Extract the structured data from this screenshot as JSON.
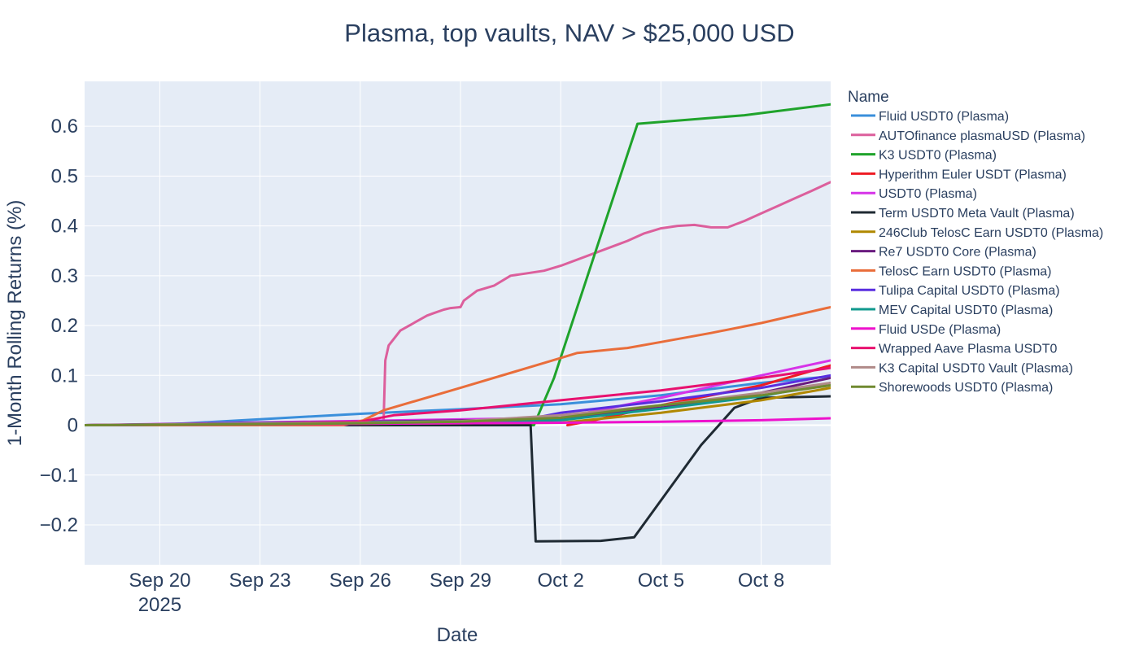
{
  "chart_data": {
    "type": "line",
    "title": "Plasma, top vaults, NAV > $25,000 USD",
    "xlabel": "Date",
    "ylabel": "1-Month Rolling Returns (%)",
    "legend_title": "Name",
    "legend_position": "right",
    "grid": true,
    "x_unit": "days since Sep 20 2025",
    "xlim": [
      -2.25,
      20.08
    ],
    "ylim": [
      -0.28,
      0.69
    ],
    "x_ticks": [
      {
        "x": 0,
        "label": "Sep 20",
        "sublabel": "2025"
      },
      {
        "x": 3,
        "label": "Sep 23"
      },
      {
        "x": 6,
        "label": "Sep 26"
      },
      {
        "x": 9,
        "label": "Sep 29"
      },
      {
        "x": 12,
        "label": "Oct 2"
      },
      {
        "x": 15,
        "label": "Oct 5"
      },
      {
        "x": 18,
        "label": "Oct 8"
      }
    ],
    "y_ticks": [
      {
        "y": -0.2,
        "label": "−0.2"
      },
      {
        "y": -0.1,
        "label": "−0.1"
      },
      {
        "y": 0,
        "label": "0"
      },
      {
        "y": 0.1,
        "label": "0.1"
      },
      {
        "y": 0.2,
        "label": "0.2"
      },
      {
        "y": 0.3,
        "label": "0.3"
      },
      {
        "y": 0.4,
        "label": "0.4"
      },
      {
        "y": 0.5,
        "label": "0.5"
      },
      {
        "y": 0.6,
        "label": "0.6"
      }
    ],
    "series": [
      {
        "name": "Fluid USDT0 (Plasma)",
        "color": "#3a8fdb",
        "x": [
          -2.25,
          -0.2,
          3,
          6,
          9,
          12,
          15,
          18,
          20.08
        ],
        "y": [
          0,
          0,
          0.012,
          0.023,
          0.032,
          0.042,
          0.06,
          0.085,
          0.098
        ]
      },
      {
        "name": "AUTOfinance plasmaUSD (Plasma)",
        "color": "#dc5f9c",
        "x": [
          -2.25,
          -0.2,
          3,
          6.7,
          6.75,
          6.85,
          7.2,
          7.6,
          8.0,
          8.2,
          8.5,
          8.7,
          9.0,
          9.1,
          9.5,
          10.0,
          10.5,
          11.0,
          11.5,
          12.0,
          13.0,
          14.0,
          14.5,
          15.0,
          15.5,
          16.0,
          16.5,
          17.0,
          17.5,
          18.0,
          18.5,
          19.0,
          19.5,
          20.08
        ],
        "y": [
          0,
          0,
          0.005,
          0.008,
          0.13,
          0.16,
          0.19,
          0.205,
          0.22,
          0.225,
          0.232,
          0.235,
          0.237,
          0.25,
          0.27,
          0.28,
          0.3,
          0.305,
          0.31,
          0.32,
          0.345,
          0.37,
          0.385,
          0.395,
          0.4,
          0.402,
          0.397,
          0.397,
          0.41,
          0.425,
          0.44,
          0.455,
          0.47,
          0.488
        ]
      },
      {
        "name": "K3 USDT0 (Plasma)",
        "color": "#1fa32b",
        "x": [
          -2.25,
          11.2,
          11.8,
          14.3,
          17.5,
          20.08
        ],
        "y": [
          0,
          0,
          0.095,
          0.605,
          0.622,
          0.644
        ]
      },
      {
        "name": "Hyperithm Euler USDT (Plasma)",
        "color": "#ee1c24",
        "x": [
          12.2,
          13,
          15,
          18,
          20.08
        ],
        "y": [
          0,
          0.01,
          0.04,
          0.08,
          0.12
        ]
      },
      {
        "name": "USDT0 (Plasma)",
        "color": "#d633e8",
        "x": [
          -2.25,
          12,
          15,
          18,
          20.08
        ],
        "y": [
          0,
          0.015,
          0.055,
          0.1,
          0.13
        ]
      },
      {
        "name": "Term USDT0 Meta Vault (Plasma)",
        "color": "#1f2a33",
        "x": [
          -2.25,
          11.1,
          11.25,
          13.2,
          14.2,
          16.2,
          17.2,
          18,
          20.08
        ],
        "y": [
          0,
          0,
          -0.233,
          -0.232,
          -0.225,
          -0.04,
          0.035,
          0.055,
          0.058
        ]
      },
      {
        "name": "246Club TelosC Earn USDT0 (Plasma)",
        "color": "#b08800",
        "x": [
          -2.25,
          12,
          15,
          18,
          20.08
        ],
        "y": [
          0,
          0.005,
          0.025,
          0.05,
          0.075
        ]
      },
      {
        "name": "Re7 USDT0 Core (Plasma)",
        "color": "#6a1b7f",
        "x": [
          -2.25,
          12,
          15,
          18,
          20.08
        ],
        "y": [
          0,
          0.012,
          0.035,
          0.065,
          0.095
        ]
      },
      {
        "name": "TelosC Earn USDT0 (Plasma)",
        "color": "#e96d3a",
        "x": [
          -2.25,
          5.5,
          6.1,
          6.7,
          9.0,
          12.0,
          12.5,
          14.0,
          15.0,
          16.5,
          18.0,
          20.08
        ],
        "y": [
          0,
          0,
          0.01,
          0.03,
          0.075,
          0.135,
          0.145,
          0.155,
          0.167,
          0.185,
          0.205,
          0.237
        ]
      },
      {
        "name": "Tulipa Capital USDT0 (Plasma)",
        "color": "#5a2ee0",
        "x": [
          -2.25,
          10.5,
          12,
          15,
          18,
          20.08
        ],
        "y": [
          0,
          0.005,
          0.025,
          0.048,
          0.075,
          0.1
        ]
      },
      {
        "name": "MEV Capital USDT0 (Plasma)",
        "color": "#11998e",
        "x": [
          -2.25,
          12,
          15,
          18,
          20.08
        ],
        "y": [
          0,
          0.01,
          0.033,
          0.058,
          0.085
        ]
      },
      {
        "name": "Fluid USDe (Plasma)",
        "color": "#ee11cc",
        "x": [
          -2.25,
          12,
          15,
          18,
          20.08
        ],
        "y": [
          0,
          0.005,
          0.007,
          0.01,
          0.014
        ]
      },
      {
        "name": "Wrapped Aave Plasma USDT0",
        "color": "#e8116f",
        "x": [
          -2.25,
          3,
          6,
          7,
          9,
          12,
          15,
          18,
          20.08
        ],
        "y": [
          0,
          0.003,
          0.007,
          0.02,
          0.03,
          0.05,
          0.07,
          0.095,
          0.115
        ]
      },
      {
        "name": "K3 Capital USDT0 Vault (Plasma)",
        "color": "#b08a88",
        "x": [
          -2.25,
          6,
          9,
          12,
          15,
          18,
          20.08
        ],
        "y": [
          0,
          0.005,
          0.008,
          0.02,
          0.04,
          0.065,
          0.085
        ]
      },
      {
        "name": "Shorewoods USDT0 (Plasma)",
        "color": "#708a30",
        "x": [
          -2.25,
          3,
          6,
          9,
          12,
          15,
          18,
          20.08
        ],
        "y": [
          0,
          0.002,
          0.004,
          0.007,
          0.015,
          0.04,
          0.06,
          0.08
        ]
      }
    ]
  }
}
